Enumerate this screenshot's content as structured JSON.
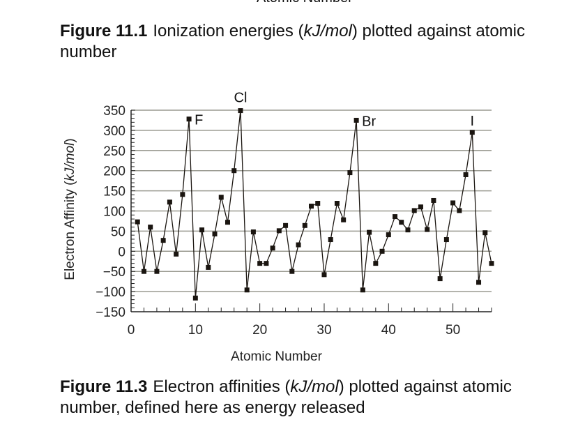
{
  "top_cutoff_label": "Atomic Number",
  "figure_11_1": {
    "number": "Figure 11.1",
    "text_pre": "Ionization energies (",
    "unit": "kJ/mol",
    "text_post": ") plotted against atomic number"
  },
  "figure_11_3": {
    "number": "Figure 11.3",
    "text_pre": "Electron affinities (",
    "unit": "kJ/mol",
    "text_post": ") plotted against atomic number, defined here as energy released"
  },
  "chart_data": {
    "type": "line",
    "xlabel": "Atomic Number",
    "ylabel_pre": "Electron Affinity (",
    "ylabel_unit": "kJ/mol",
    "ylabel_post": ")",
    "xlim": [
      0,
      56
    ],
    "ylim": [
      -150,
      350
    ],
    "xticks": [
      0,
      10,
      20,
      30,
      40,
      50
    ],
    "yticks": [
      350,
      300,
      250,
      200,
      150,
      100,
      50,
      0,
      -50,
      -100,
      -150
    ],
    "ytick_labels": [
      "350",
      "300",
      "250",
      "200",
      "150",
      "100",
      "50",
      "0",
      "−50",
      "−100",
      "−150"
    ],
    "grid": true,
    "x": [
      1,
      2,
      3,
      4,
      5,
      6,
      7,
      8,
      9,
      10,
      11,
      12,
      13,
      14,
      15,
      16,
      17,
      18,
      19,
      20,
      21,
      22,
      23,
      24,
      25,
      26,
      27,
      28,
      29,
      30,
      31,
      32,
      33,
      34,
      35,
      36,
      37,
      38,
      39,
      40,
      41,
      42,
      43,
      44,
      45,
      46,
      47,
      48,
      49,
      50,
      51,
      52,
      53,
      54,
      55,
      56
    ],
    "y": [
      73,
      -50,
      60,
      -50,
      27,
      122,
      -7,
      141,
      328,
      -116,
      53,
      -40,
      43,
      134,
      72,
      200,
      349,
      -96,
      48,
      -30,
      -30,
      8,
      51,
      64,
      -50,
      16,
      64,
      112,
      119,
      -58,
      29,
      119,
      78,
      195,
      325,
      -96,
      47,
      -30,
      0,
      41,
      86,
      72,
      53,
      101,
      110,
      54,
      126,
      -68,
      29,
      120,
      101,
      190,
      295,
      -77,
      46,
      -30
    ],
    "annotations": [
      {
        "text": "F",
        "x": 9,
        "y": 328
      },
      {
        "text": "Cl",
        "x": 17,
        "y": 349
      },
      {
        "text": "Br",
        "x": 35,
        "y": 325
      },
      {
        "text": "I",
        "x": 53,
        "y": 295
      }
    ]
  }
}
